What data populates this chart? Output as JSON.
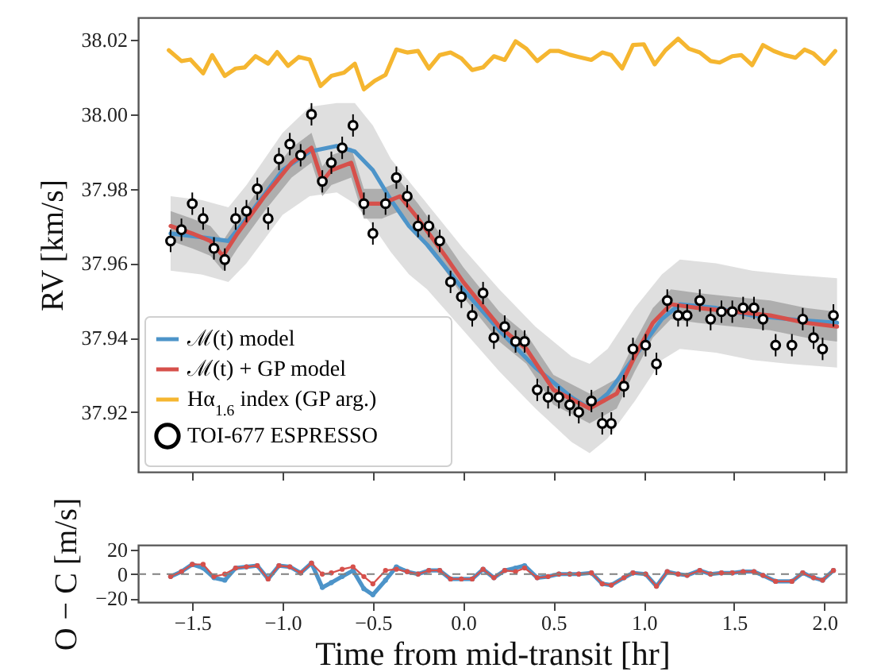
{
  "chart_data": [
    {
      "type": "line",
      "ylabel": "RV [km/s]",
      "xlim": [
        -1.8,
        2.12
      ],
      "xticks": [
        -1.5,
        -1.0,
        -0.5,
        0.0,
        0.5,
        1.0,
        1.5,
        2.0
      ],
      "ylim": [
        37.904,
        38.026
      ],
      "yticks": [
        37.92,
        37.94,
        37.96,
        37.98,
        {
          "value": 38.0,
          "label": "38.00"
        },
        38.02
      ],
      "tick_labels": "y",
      "legend": "bottom left",
      "grid": false,
      "series": [
        {
          "name": "ℳ(t) model",
          "color": "#4d94c9",
          "x": [
            -1.62,
            -1.45,
            -1.3,
            -1.2,
            -1.0,
            -0.85,
            -0.7,
            -0.6,
            -0.5,
            -0.4,
            -0.3,
            -0.2,
            0.0,
            0.2,
            0.4,
            0.6,
            0.7,
            0.8,
            0.95,
            1.1,
            1.2,
            1.4,
            1.6,
            1.8,
            2.07
          ],
          "values": [
            37.968,
            37.967,
            37.966,
            37.972,
            37.985,
            37.99,
            37.9915,
            37.99,
            37.985,
            37.977,
            37.97,
            37.965,
            37.953,
            37.942,
            37.932,
            37.924,
            37.921,
            37.925,
            37.935,
            37.945,
            37.949,
            37.948,
            37.946,
            37.945,
            37.944
          ],
          "lower": [
            37.958,
            37.957,
            37.955,
            37.96,
            37.973,
            37.978,
            37.979,
            37.976,
            37.97,
            37.963,
            37.957,
            37.953,
            37.942,
            37.931,
            37.921,
            37.912,
            37.909,
            37.913,
            37.923,
            37.934,
            37.937,
            37.936,
            37.934,
            37.933,
            37.932
          ],
          "upper": [
            37.978,
            37.977,
            37.975,
            37.981,
            37.995,
            38.002,
            38.003,
            38.003,
            37.997,
            37.988,
            37.982,
            37.976,
            37.964,
            37.953,
            37.943,
            37.935,
            37.933,
            37.937,
            37.948,
            37.957,
            37.961,
            37.96,
            37.958,
            37.957,
            37.956
          ]
        },
        {
          "name": "ℳ(t) + GP model",
          "color": "#d6504b",
          "x": [
            -1.62,
            -1.5,
            -1.4,
            -1.33,
            -1.25,
            -1.1,
            -0.95,
            -0.84,
            -0.78,
            -0.73,
            -0.62,
            -0.55,
            -0.45,
            -0.35,
            -0.25,
            -0.1,
            0.0,
            0.2,
            0.35,
            0.5,
            0.7,
            0.85,
            0.95,
            1.05,
            1.15,
            1.3,
            1.5,
            1.7,
            1.9,
            2.07
          ],
          "values": [
            37.97,
            37.968,
            37.966,
            37.962,
            37.968,
            37.978,
            37.987,
            37.991,
            37.982,
            37.985,
            37.987,
            37.976,
            37.976,
            37.978,
            37.972,
            37.962,
            37.955,
            37.943,
            37.937,
            37.926,
            37.921,
            37.925,
            37.935,
            37.944,
            37.949,
            37.948,
            37.947,
            37.946,
            37.944,
            37.943
          ],
          "lower": [
            37.966,
            37.964,
            37.962,
            37.958,
            37.964,
            37.974,
            37.983,
            37.987,
            37.978,
            37.981,
            37.983,
            37.972,
            37.972,
            37.974,
            37.968,
            37.958,
            37.951,
            37.939,
            37.933,
            37.922,
            37.917,
            37.921,
            37.931,
            37.94,
            37.945,
            37.944,
            37.943,
            37.942,
            37.94,
            37.939
          ],
          "upper": [
            37.974,
            37.972,
            37.97,
            37.966,
            37.972,
            37.982,
            37.991,
            37.995,
            37.986,
            37.989,
            37.991,
            37.98,
            37.98,
            37.982,
            37.976,
            37.966,
            37.959,
            37.947,
            37.941,
            37.93,
            37.925,
            37.929,
            37.939,
            37.948,
            37.953,
            37.952,
            37.951,
            37.95,
            37.948,
            37.947
          ]
        },
        {
          "name": "Hα$_{1.6}$ index (GP arg.)",
          "color": "#f5b630",
          "x": [
            -1.63,
            -1.56,
            -1.51,
            -1.44,
            -1.39,
            -1.32,
            -1.26,
            -1.21,
            -1.15,
            -1.08,
            -1.03,
            -0.97,
            -0.91,
            -0.85,
            -0.79,
            -0.73,
            -0.66,
            -0.6,
            -0.55,
            -0.49,
            -0.43,
            -0.37,
            -0.31,
            -0.25,
            -0.19,
            -0.13,
            -0.07,
            -0.01,
            0.05,
            0.11,
            0.17,
            0.23,
            0.29,
            0.35,
            0.41,
            0.48,
            0.53,
            0.59,
            0.64,
            0.71,
            0.77,
            0.82,
            0.88,
            0.94,
            1.0,
            1.06,
            1.12,
            1.19,
            1.25,
            1.31,
            1.37,
            1.42,
            1.49,
            1.54,
            1.6,
            1.66,
            1.72,
            1.78,
            1.84,
            1.89,
            1.94,
            2.0,
            2.06
          ],
          "values": [
            38.0172,
            38.0143,
            38.0147,
            38.011,
            38.0159,
            38.0103,
            38.0123,
            38.0126,
            38.0156,
            38.0136,
            38.0167,
            38.013,
            38.0154,
            38.0147,
            38.0076,
            38.0103,
            38.0112,
            38.0136,
            38.0067,
            38.009,
            38.0106,
            38.0174,
            38.0166,
            38.017,
            38.0123,
            38.0159,
            38.0166,
            38.015,
            38.0119,
            38.0126,
            38.0156,
            38.0146,
            38.0196,
            38.0176,
            38.0143,
            38.017,
            38.017,
            38.016,
            38.0154,
            38.0146,
            38.0166,
            38.0159,
            38.0123,
            38.0186,
            38.0188,
            38.0134,
            38.0172,
            38.0203,
            38.0176,
            38.0166,
            38.0143,
            38.0139,
            38.0156,
            38.0159,
            38.0132,
            38.0186,
            38.017,
            38.0159,
            38.0152,
            38.0174,
            38.0163,
            38.0136,
            38.017
          ]
        },
        {
          "type": "scatter",
          "name": "TOI-677 ESPRESSO",
          "color": "#000000",
          "marker": "circle",
          "x": [
            -1.62,
            -1.56,
            -1.5,
            -1.44,
            -1.38,
            -1.32,
            -1.26,
            -1.2,
            -1.14,
            -1.08,
            -1.02,
            -0.96,
            -0.9,
            -0.84,
            -0.78,
            -0.73,
            -0.67,
            -0.61,
            -0.55,
            -0.5,
            -0.43,
            -0.37,
            -0.31,
            -0.25,
            -0.19,
            -0.13,
            -0.07,
            -0.01,
            0.05,
            0.11,
            0.17,
            0.23,
            0.29,
            0.34,
            0.41,
            0.47,
            0.53,
            0.59,
            0.64,
            0.71,
            0.77,
            0.82,
            0.89,
            0.94,
            1.01,
            1.07,
            1.13,
            1.19,
            1.24,
            1.31,
            1.37,
            1.43,
            1.49,
            1.55,
            1.61,
            1.66,
            1.73,
            1.82,
            1.88,
            1.94,
            1.99,
            2.05
          ],
          "values": [
            37.966,
            37.969,
            37.976,
            37.972,
            37.964,
            37.961,
            37.972,
            37.974,
            37.98,
            37.972,
            37.988,
            37.992,
            37.989,
            38.0,
            37.982,
            37.987,
            37.991,
            37.997,
            37.976,
            37.968,
            37.976,
            37.983,
            37.978,
            37.97,
            37.97,
            37.966,
            37.955,
            37.951,
            37.946,
            37.952,
            37.94,
            37.943,
            37.939,
            37.939,
            37.926,
            37.924,
            37.924,
            37.922,
            37.92,
            37.923,
            37.917,
            37.917,
            37.927,
            37.937,
            37.938,
            37.933,
            37.95,
            37.946,
            37.946,
            37.95,
            37.945,
            37.947,
            37.947,
            37.948,
            37.948,
            37.945,
            37.938,
            37.938,
            37.945,
            37.94,
            37.937,
            37.946
          ],
          "errors": [
            0.003,
            0.003,
            0.003,
            0.003,
            0.003,
            0.003,
            0.003,
            0.003,
            0.003,
            0.003,
            0.003,
            0.003,
            0.003,
            0.003,
            0.003,
            0.003,
            0.003,
            0.003,
            0.003,
            0.003,
            0.003,
            0.003,
            0.003,
            0.003,
            0.003,
            0.003,
            0.003,
            0.003,
            0.003,
            0.003,
            0.003,
            0.003,
            0.003,
            0.003,
            0.003,
            0.003,
            0.003,
            0.003,
            0.003,
            0.003,
            0.003,
            0.003,
            0.003,
            0.003,
            0.003,
            0.003,
            0.003,
            0.003,
            0.003,
            0.003,
            0.003,
            0.003,
            0.003,
            0.003,
            0.003,
            0.003,
            0.003,
            0.003,
            0.003,
            0.003,
            0.003,
            0.003
          ]
        }
      ]
    },
    {
      "type": "line",
      "xlabel": "Time from mid-transit [hr]",
      "ylabel": "O − C [m/s]",
      "xlim": [
        -1.8,
        2.12
      ],
      "xticks": [
        -1.5,
        {
          "value": -1.0,
          "label": "−1.0"
        },
        -0.5,
        {
          "value": 0.0,
          "label": "0.0"
        },
        0.5,
        {
          "value": 1.0,
          "label": "1.0"
        },
        1.5,
        {
          "value": 2.0,
          "label": "2.0"
        }
      ],
      "ylim": [
        -23,
        24
      ],
      "yticks": [
        -20,
        {
          "value": 0,
          "label": "0"
        },
        20
      ],
      "grid": false,
      "marker": "circle",
      "ref_lines": [
        {
          "axis": "y",
          "value": 0,
          "color": "#808080",
          "line_style": "dashed"
        }
      ],
      "series": [
        {
          "color": "#4d94c9",
          "x": [
            -1.62,
            -1.56,
            -1.5,
            -1.44,
            -1.38,
            -1.32,
            -1.26,
            -1.2,
            -1.14,
            -1.08,
            -1.02,
            -0.96,
            -0.9,
            -0.84,
            -0.78,
            -0.73,
            -0.67,
            -0.61,
            -0.55,
            -0.5,
            -0.43,
            -0.37,
            -0.31,
            -0.25,
            -0.19,
            -0.13,
            -0.07,
            -0.01,
            0.05,
            0.11,
            0.17,
            0.23,
            0.29,
            0.34,
            0.41,
            0.47,
            0.53,
            0.59,
            0.64,
            0.71,
            0.77,
            0.82,
            0.89,
            0.94,
            1.01,
            1.07,
            1.13,
            1.19,
            1.24,
            1.31,
            1.37,
            1.43,
            1.49,
            1.55,
            1.61,
            1.66,
            1.73,
            1.82,
            1.88,
            1.94,
            1.99,
            2.05
          ],
          "values": [
            -2,
            2,
            8,
            5,
            -3,
            -5,
            5,
            6,
            7,
            -4,
            7,
            6,
            1,
            9,
            -11,
            -7,
            -2,
            3,
            -12,
            -17,
            -5,
            6,
            2,
            0,
            3,
            3,
            -4,
            -4,
            -4,
            4,
            -3,
            3,
            5,
            7,
            -3,
            -2,
            0,
            0,
            0,
            1,
            -8,
            -9,
            -3,
            1,
            0,
            -10,
            2,
            0,
            -1,
            3,
            0,
            1,
            1,
            2,
            2,
            -1,
            -6,
            -6,
            1,
            -3,
            -5,
            3
          ]
        },
        {
          "color": "#d6504b",
          "x": [
            -1.62,
            -1.56,
            -1.5,
            -1.44,
            -1.38,
            -1.32,
            -1.26,
            -1.2,
            -1.14,
            -1.08,
            -1.02,
            -0.96,
            -0.9,
            -0.84,
            -0.78,
            -0.73,
            -0.67,
            -0.61,
            -0.55,
            -0.5,
            -0.43,
            -0.37,
            -0.31,
            -0.25,
            -0.19,
            -0.13,
            -0.07,
            -0.01,
            0.05,
            0.11,
            0.17,
            0.23,
            0.29,
            0.34,
            0.41,
            0.47,
            0.53,
            0.59,
            0.64,
            0.71,
            0.77,
            0.82,
            0.89,
            0.94,
            1.01,
            1.07,
            1.13,
            1.19,
            1.24,
            1.31,
            1.37,
            1.43,
            1.49,
            1.55,
            1.61,
            1.66,
            1.73,
            1.82,
            1.88,
            1.94,
            1.99,
            2.05
          ],
          "values": [
            -2,
            2,
            8,
            8,
            -2,
            0,
            5,
            6,
            7,
            -4,
            7,
            6,
            1,
            9,
            0,
            1,
            4,
            6,
            -2,
            -8,
            3,
            4,
            2,
            0,
            3,
            3,
            -4,
            -4,
            -4,
            4,
            -3,
            3,
            2,
            5,
            -3,
            -2,
            0,
            0,
            0,
            1,
            -8,
            -9,
            -3,
            1,
            0,
            -10,
            2,
            0,
            -1,
            3,
            0,
            1,
            1,
            2,
            2,
            -1,
            -6,
            -6,
            1,
            -3,
            -5,
            3
          ]
        }
      ]
    }
  ]
}
